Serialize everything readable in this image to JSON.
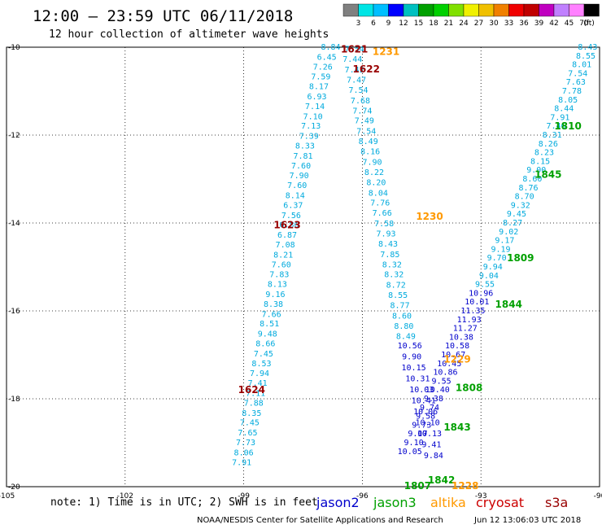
{
  "title": "12:00 – 23:59 UTC 06/11/2018",
  "subtitle": "12 hour collection of altimeter wave heights",
  "note": "note: 1) Time is in UTC; 2) SWH is in feet",
  "credit": "NOAA/NESDIS Center for Satellite Applications and Research",
  "generated": "Jun 12 13:06:03 UTC 2018",
  "missions": [
    {
      "name": "jason2",
      "color": "#0000cc"
    },
    {
      "name": "jason3",
      "color": "#00a000"
    },
    {
      "name": "altika",
      "color": "#ff9900"
    },
    {
      "name": "cryosat",
      "color": "#cc0000"
    },
    {
      "name": "s3a",
      "color": "#990000"
    }
  ],
  "chart_data": {
    "type": "scatter",
    "title": "12:00 – 23:59 UTC 06/11/2018",
    "subtitle": "12 hour collection of altimeter wave heights",
    "xlim": [
      -105,
      -90
    ],
    "ylim": [
      -20,
      -10
    ],
    "x_ticks": [
      -105,
      -102,
      -99,
      -96,
      -93,
      -90
    ],
    "y_ticks": [
      -10,
      -12,
      -14,
      -16,
      -18,
      -20
    ],
    "grid": true,
    "colorbar": {
      "unit": "(ft)",
      "levels": [
        "3",
        "6",
        "9",
        "12",
        "15",
        "18",
        "21",
        "24",
        "27",
        "30",
        "33",
        "36",
        "39",
        "42",
        "45",
        "70"
      ],
      "colors": [
        "#808080",
        "#00e5e5",
        "#00bfff",
        "#0000ff",
        "#00c0c0",
        "#00a000",
        "#00d000",
        "#80e000",
        "#f0f000",
        "#f0c000",
        "#f08000",
        "#f00000",
        "#c00000",
        "#c000c0",
        "#c080ff",
        "#ff80ff",
        "#000000"
      ]
    },
    "time_labels": [
      {
        "text": "1621",
        "x": -96.2,
        "y": -10.05,
        "mission": "s3a"
      },
      {
        "text": "1622",
        "x": -95.9,
        "y": -10.5,
        "mission": "s3a"
      },
      {
        "text": "1231",
        "x": -95.4,
        "y": -10.1,
        "mission": "altika"
      },
      {
        "text": "1623",
        "x": -97.9,
        "y": -14.05,
        "mission": "s3a"
      },
      {
        "text": "1230",
        "x": -94.3,
        "y": -13.85,
        "mission": "altika"
      },
      {
        "text": "1624",
        "x": -98.8,
        "y": -17.8,
        "mission": "s3a"
      },
      {
        "text": "1810",
        "x": -90.8,
        "y": -11.8,
        "mission": "jason3"
      },
      {
        "text": "1845",
        "x": -91.3,
        "y": -12.9,
        "mission": "jason3"
      },
      {
        "text": "1809",
        "x": -92.0,
        "y": -14.8,
        "mission": "jason3"
      },
      {
        "text": "1844",
        "x": -92.3,
        "y": -15.85,
        "mission": "jason3"
      },
      {
        "text": "1808",
        "x": -93.3,
        "y": -17.75,
        "mission": "jason3"
      },
      {
        "text": "1843",
        "x": -93.6,
        "y": -18.65,
        "mission": "jason3"
      },
      {
        "text": "1842",
        "x": -94.0,
        "y": -19.85,
        "mission": "jason3"
      },
      {
        "text": "1807",
        "x": -94.6,
        "y": -19.98,
        "mission": "jason3"
      },
      {
        "text": "1229",
        "x": -93.6,
        "y": -17.1,
        "mission": "altika"
      },
      {
        "text": "1228",
        "x": -93.4,
        "y": -19.98,
        "mission": "altika"
      }
    ],
    "series": [
      {
        "name": "track-w",
        "color": "#00aadd",
        "points": [
          [
            -96.8,
            -10.0,
            "8.84"
          ],
          [
            -96.9,
            -10.23,
            "6.45"
          ],
          [
            -97.0,
            -10.45,
            "7.26"
          ],
          [
            -97.05,
            -10.68,
            "7.59"
          ],
          [
            -97.1,
            -10.9,
            "8.17"
          ],
          [
            -97.15,
            -11.13,
            "6.93"
          ],
          [
            -97.2,
            -11.35,
            "7.14"
          ],
          [
            -97.25,
            -11.58,
            "7.10"
          ],
          [
            -97.3,
            -11.8,
            "7.13"
          ],
          [
            -97.35,
            -12.03,
            "7.39"
          ],
          [
            -97.45,
            -12.25,
            "8.33"
          ],
          [
            -97.5,
            -12.48,
            "7.81"
          ],
          [
            -97.55,
            -12.7,
            "7.60"
          ],
          [
            -97.6,
            -12.93,
            "7.90"
          ],
          [
            -97.65,
            -13.15,
            "7.60"
          ],
          [
            -97.7,
            -13.38,
            "8.14"
          ],
          [
            -97.75,
            -13.6,
            "6.37"
          ],
          [
            -97.8,
            -13.83,
            "7.56"
          ],
          [
            -97.85,
            -14.05,
            "6.86"
          ],
          [
            -97.9,
            -14.28,
            "6.87"
          ],
          [
            -97.95,
            -14.5,
            "7.08"
          ],
          [
            -98.0,
            -14.73,
            "8.21"
          ],
          [
            -98.05,
            -14.95,
            "7.60"
          ],
          [
            -98.1,
            -15.18,
            "7.83"
          ],
          [
            -98.15,
            -15.4,
            "8.13"
          ],
          [
            -98.2,
            -15.63,
            "9.16"
          ],
          [
            -98.25,
            -15.85,
            "8.38"
          ],
          [
            -98.3,
            -16.08,
            "7.66"
          ],
          [
            -98.35,
            -16.3,
            "8.51"
          ],
          [
            -98.4,
            -16.53,
            "9.48"
          ],
          [
            -98.45,
            -16.75,
            "8.66"
          ],
          [
            -98.5,
            -16.98,
            "7.45"
          ],
          [
            -98.55,
            -17.2,
            "8.53"
          ],
          [
            -98.6,
            -17.43,
            "7.94"
          ],
          [
            -98.65,
            -17.65,
            "7.41"
          ],
          [
            -98.7,
            -17.88,
            "7.11"
          ],
          [
            -98.75,
            -18.1,
            "7.88"
          ],
          [
            -98.8,
            -18.33,
            "8.35"
          ],
          [
            -98.85,
            -18.55,
            "7.45"
          ],
          [
            -98.9,
            -18.78,
            "7.65"
          ],
          [
            -98.95,
            -19.0,
            "7.73"
          ],
          [
            -99.0,
            -19.23,
            "8.06"
          ],
          [
            -99.05,
            -19.45,
            "7.91"
          ]
        ]
      },
      {
        "name": "track-m",
        "color": "#00aadd",
        "points": [
          [
            -96.2,
            -10.05,
            "7.54"
          ],
          [
            -96.25,
            -10.28,
            "7.44"
          ],
          [
            -96.2,
            -10.52,
            "7.42"
          ],
          [
            -96.15,
            -10.75,
            "7.47"
          ],
          [
            -96.1,
            -10.98,
            "7.54"
          ],
          [
            -96.05,
            -11.22,
            "7.68"
          ],
          [
            -96.0,
            -11.45,
            "7.74"
          ],
          [
            -95.95,
            -11.68,
            "7.49"
          ],
          [
            -95.9,
            -11.92,
            "7.54"
          ],
          [
            -95.85,
            -12.15,
            "8.49"
          ],
          [
            -95.8,
            -12.38,
            "8.16"
          ],
          [
            -95.75,
            -12.62,
            "7.90"
          ],
          [
            -95.7,
            -12.85,
            "8.22"
          ],
          [
            -95.65,
            -13.08,
            "8.20"
          ],
          [
            -95.6,
            -13.32,
            "8.04"
          ],
          [
            -95.55,
            -13.55,
            "7.76"
          ],
          [
            -95.5,
            -13.78,
            "7.66"
          ],
          [
            -95.45,
            -14.02,
            "7.58"
          ],
          [
            -95.4,
            -14.25,
            "7.93"
          ],
          [
            -95.35,
            -14.48,
            "8.43"
          ],
          [
            -95.3,
            -14.72,
            "7.85"
          ],
          [
            -95.25,
            -14.95,
            "8.32"
          ],
          [
            -95.2,
            -15.18,
            "8.32"
          ],
          [
            -95.15,
            -15.42,
            "8.72"
          ],
          [
            -95.1,
            -15.65,
            "8.55"
          ],
          [
            -95.05,
            -15.88,
            "8.77"
          ],
          [
            -95.0,
            -16.12,
            "8.60"
          ],
          [
            -94.95,
            -16.35,
            "8.80"
          ],
          [
            -94.9,
            -16.58,
            "8.49"
          ]
        ]
      },
      {
        "name": "track-e",
        "color": "#00aadd",
        "points": [
          [
            -90.3,
            -10.0,
            "8.43"
          ],
          [
            -90.35,
            -10.2,
            "8.55"
          ],
          [
            -90.45,
            -10.4,
            "8.01"
          ],
          [
            -90.55,
            -10.6,
            "7.54"
          ],
          [
            -90.6,
            -10.8,
            "7.63"
          ],
          [
            -90.7,
            -11.0,
            "7.78"
          ],
          [
            -90.8,
            -11.2,
            "8.05"
          ],
          [
            -90.9,
            -11.4,
            "8.44"
          ],
          [
            -91.0,
            -11.6,
            "7.91"
          ],
          [
            -91.1,
            -11.8,
            "7.46"
          ],
          [
            -91.2,
            -12.0,
            "8.31"
          ],
          [
            -91.3,
            -12.2,
            "8.26"
          ],
          [
            -91.4,
            -12.4,
            "8.23"
          ],
          [
            -91.5,
            -12.6,
            "8.15"
          ],
          [
            -91.6,
            -12.8,
            "9.00"
          ],
          [
            -91.7,
            -13.0,
            "8.60"
          ],
          [
            -91.8,
            -13.2,
            "8.76"
          ],
          [
            -91.9,
            -13.4,
            "8.70"
          ],
          [
            -92.0,
            -13.6,
            "9.32"
          ],
          [
            -92.1,
            -13.8,
            "9.45"
          ],
          [
            -92.2,
            -14.0,
            "8.27"
          ],
          [
            -92.3,
            -14.2,
            "9.02"
          ],
          [
            -92.4,
            -14.4,
            "9.17"
          ],
          [
            -92.5,
            -14.6,
            "9.19"
          ],
          [
            -92.6,
            -14.8,
            "9.70"
          ],
          [
            -92.7,
            -15.0,
            "9.94"
          ],
          [
            -92.8,
            -15.2,
            "9.04"
          ],
          [
            -92.9,
            -15.4,
            "9.55"
          ]
        ]
      },
      {
        "name": "track-e-deep",
        "color": "#0000cc",
        "points": [
          [
            -93.0,
            -15.6,
            "10.96"
          ],
          [
            -93.1,
            -15.8,
            "10.01"
          ],
          [
            -93.2,
            -16.0,
            "11.35"
          ],
          [
            -93.3,
            -16.2,
            "11.93"
          ],
          [
            -93.4,
            -16.4,
            "11.27"
          ],
          [
            -93.5,
            -16.6,
            "10.38"
          ],
          [
            -93.6,
            -16.8,
            "10.58"
          ],
          [
            -93.7,
            -17.0,
            "10.67"
          ],
          [
            -93.8,
            -17.2,
            "10.45"
          ],
          [
            -93.9,
            -17.4,
            "10.86"
          ],
          [
            -94.0,
            -17.6,
            "9.55"
          ],
          [
            -94.1,
            -17.8,
            "10.40"
          ],
          [
            -94.2,
            -18.0,
            "9.38"
          ],
          [
            -94.3,
            -18.2,
            "9.74"
          ],
          [
            -94.4,
            -18.4,
            "9.58"
          ],
          [
            -94.5,
            -18.6,
            "9.73"
          ],
          [
            -94.6,
            -18.8,
            "9.07"
          ],
          [
            -94.7,
            -19.0,
            "9.10"
          ],
          [
            -94.8,
            -19.2,
            "10.05"
          ]
        ]
      },
      {
        "name": "track-c",
        "color": "#0000cc",
        "points": [
          [
            -94.8,
            -16.8,
            "10.56"
          ],
          [
            -94.75,
            -17.05,
            "9.90"
          ],
          [
            -94.7,
            -17.3,
            "10.15"
          ],
          [
            -94.6,
            -17.55,
            "10.31"
          ],
          [
            -94.5,
            -17.8,
            "10.03"
          ],
          [
            -94.45,
            -18.05,
            "10.41"
          ],
          [
            -94.4,
            -18.3,
            "10.06"
          ],
          [
            -94.35,
            -18.55,
            "10.10"
          ],
          [
            -94.3,
            -18.8,
            "10.13"
          ],
          [
            -94.25,
            -19.05,
            "9.41"
          ],
          [
            -94.2,
            -19.3,
            "9.84"
          ]
        ]
      }
    ]
  }
}
